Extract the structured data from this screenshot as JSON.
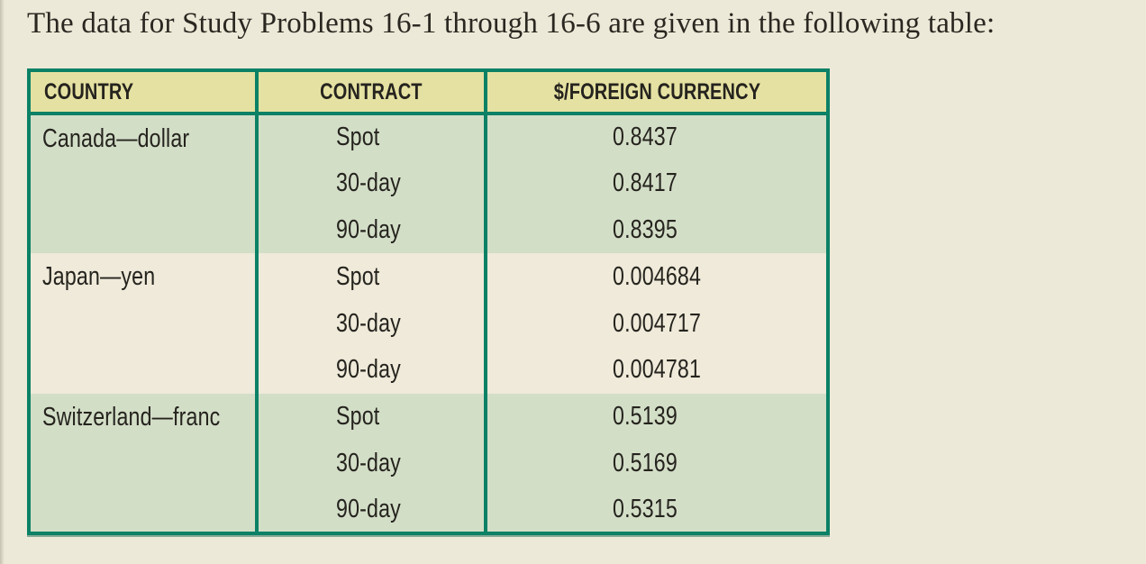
{
  "page": {
    "title": "The data for Study Problems 16-1 through 16-6 are given in the following table:"
  },
  "colors": {
    "page_bg": "#EDE9D8",
    "table_border": "#0B8166",
    "header_bg": "#E5E1A2",
    "group_green": "#D3DEC7",
    "group_cream": "#EFEAD9",
    "text": "#25231E"
  },
  "table": {
    "headers": [
      "COUNTRY",
      "CONTRACT",
      "$/FOREIGN CURRENCY"
    ],
    "groups": [
      {
        "country": "Canada—dollar",
        "rows": [
          {
            "contract": "Spot",
            "rate": "0.8437"
          },
          {
            "contract": "30-day",
            "rate": "0.8417"
          },
          {
            "contract": "90-day",
            "rate": "0.8395"
          }
        ]
      },
      {
        "country": "Japan—yen",
        "rows": [
          {
            "contract": "Spot",
            "rate": "0.004684"
          },
          {
            "contract": "30-day",
            "rate": "0.004717"
          },
          {
            "contract": "90-day",
            "rate": "0.004781"
          }
        ]
      },
      {
        "country": "Switzerland—franc",
        "rows": [
          {
            "contract": "Spot",
            "rate": "0.5139"
          },
          {
            "contract": "30-day",
            "rate": "0.5169"
          },
          {
            "contract": "90-day",
            "rate": "0.5315"
          }
        ]
      }
    ]
  }
}
